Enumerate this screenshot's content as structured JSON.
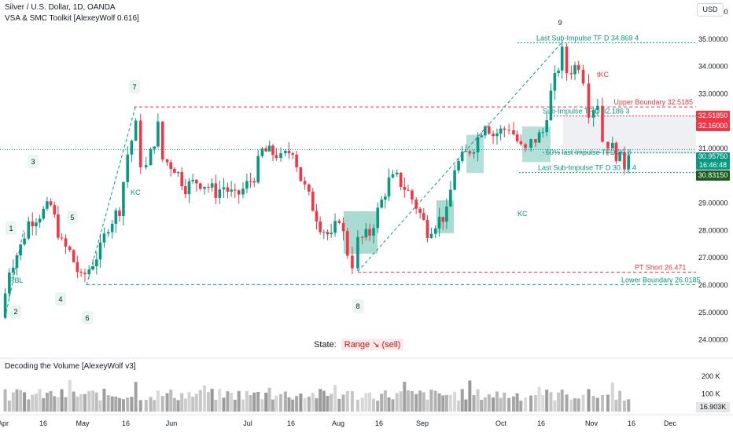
{
  "header": {
    "title": "Silver / U.S. Dollar, 1D, OANDA",
    "indicator": "VSA & SMC Toolkit [AlexeyWolf 0.616]"
  },
  "currency_button": "USD",
  "state": {
    "label": "State:",
    "value": "Range ↘ (sell)"
  },
  "volume_pane": {
    "title": "Decoding the Volume [AlexeyWolf v3]",
    "current": "16.903K"
  },
  "price_tags": {
    "upper": {
      "value": "32.51850",
      "color": "#f23645"
    },
    "red2": {
      "value": "32.16000",
      "color": "#f23645"
    },
    "last": {
      "value": "30.95750",
      "countdown": "16:46:48",
      "color": "#089981"
    },
    "low": {
      "value": "30.83150",
      "color": "#089981"
    }
  },
  "chart_data": [
    {
      "type": "candlestick",
      "title": "Silver / U.S. Dollar, 1D, OANDA",
      "yaxis": {
        "min": 23.5,
        "max": 36.2,
        "ticks": [
          "24.00000",
          "25.00000",
          "26.00000",
          "27.00000",
          "28.00000",
          "29.00000",
          "30.00000",
          "31.00000",
          "32.00000",
          "33.00000",
          "34.00000",
          "35.00000",
          "36.00000"
        ]
      },
      "xaxis": {
        "ticks": [
          "Apr",
          "16",
          "May",
          "16",
          "Jun",
          "Jul",
          "16",
          "Aug",
          "16",
          "Sep",
          "Oct",
          "16",
          "Nov",
          "16",
          "Dec"
        ]
      },
      "colors": {
        "up": "#089981",
        "down": "#f23645"
      },
      "close_path": [
        [
          "Apr 1",
          24.8
        ],
        [
          "Apr 4",
          26.6
        ],
        [
          "Apr 8",
          27.4
        ],
        [
          "Apr 11",
          28.3
        ],
        [
          "Apr 15",
          28.6
        ],
        [
          "Apr 19",
          28.9
        ],
        [
          "Apr 23",
          27.5
        ],
        [
          "Apr 26",
          27.2
        ],
        [
          "Apr 30",
          26.2
        ],
        [
          "May 3",
          26.6
        ],
        [
          "May 7",
          27.3
        ],
        [
          "May 10",
          28.2
        ],
        [
          "May 14",
          28.8
        ],
        [
          "May 17",
          30.8
        ],
        [
          "May 20",
          31.8
        ],
        [
          "May 22",
          30.5
        ],
        [
          "May 24",
          30.3
        ],
        [
          "May 28",
          31.8
        ],
        [
          "May 30",
          30.6
        ],
        [
          "Jun 3",
          30.3
        ],
        [
          "Jun 7",
          29.6
        ],
        [
          "Jun 11",
          29.8
        ],
        [
          "Jun 14",
          29.7
        ],
        [
          "Jun 18",
          29.4
        ],
        [
          "Jun 21",
          29.6
        ],
        [
          "Jun 25",
          29.2
        ],
        [
          "Jun 28",
          29.5
        ],
        [
          "Jul 2",
          30.0
        ],
        [
          "Jul 5",
          30.9
        ],
        [
          "Jul 10",
          30.8
        ],
        [
          "Jul 12",
          30.6
        ],
        [
          "Jul 16",
          31.0
        ],
        [
          "Jul 19",
          29.9
        ],
        [
          "Jul 22",
          29.2
        ],
        [
          "Jul 26",
          28.2
        ],
        [
          "Jul 30",
          27.7
        ],
        [
          "Aug 2",
          28.5
        ],
        [
          "Aug 5",
          27.2
        ],
        [
          "Aug 7",
          26.8
        ],
        [
          "Aug 9",
          27.6
        ],
        [
          "Aug 13",
          27.9
        ],
        [
          "Aug 16",
          28.7
        ],
        [
          "Aug 20",
          29.8
        ],
        [
          "Aug 23",
          29.9
        ],
        [
          "Aug 27",
          29.4
        ],
        [
          "Aug 30",
          28.9
        ],
        [
          "Sep 3",
          28.0
        ],
        [
          "Sep 6",
          28.3
        ],
        [
          "Sep 10",
          28.6
        ],
        [
          "Sep 13",
          30.3
        ],
        [
          "Sep 17",
          30.8
        ],
        [
          "Sep 20",
          31.1
        ],
        [
          "Sep 24",
          32.0
        ],
        [
          "Sep 27",
          31.5
        ],
        [
          "Oct 1",
          31.7
        ],
        [
          "Oct 3",
          31.8
        ],
        [
          "Oct 7",
          31.0
        ],
        [
          "Oct 9",
          30.9
        ],
        [
          "Oct 11",
          31.2
        ],
        [
          "Oct 15",
          31.6
        ],
        [
          "Oct 18",
          33.0
        ],
        [
          "Oct 22",
          34.5
        ],
        [
          "Oct 24",
          33.8
        ],
        [
          "Oct 28",
          34.1
        ],
        [
          "Oct 30",
          33.6
        ],
        [
          "Nov 1",
          32.4
        ],
        [
          "Nov 4",
          32.7
        ],
        [
          "Nov 6",
          31.3
        ],
        [
          "Nov 8",
          31.2
        ],
        [
          "Nov 12",
          30.6
        ],
        [
          "Nov 14",
          30.4
        ],
        [
          "Nov 15",
          30.96
        ]
      ],
      "annotations": [
        {
          "text": "Upper Boundary 32.5185",
          "y": 32.5185,
          "color": "#f23645"
        },
        {
          "text": "Sub-Impulse TF D 32.186 3",
          "y": 32.186,
          "color": "#089981"
        },
        {
          "text": "Last Sub-Impulse TF D 34.869 4",
          "y": 34.869,
          "color": "#089981"
        },
        {
          "text": "50% last Impulse TFD 30.8",
          "y": 30.85,
          "color": "#089981"
        },
        {
          "text": "Last Sub-Impulse TF D 30.12 4",
          "y": 30.12,
          "color": "#089981"
        },
        {
          "text": "PT Short 26.471",
          "y": 26.471,
          "color": "#f23645"
        },
        {
          "text": "Lower Boundary 26.0185",
          "y": 26.0185,
          "color": "#089981"
        },
        {
          "text": "tKC",
          "color": "#f23645"
        },
        {
          "text": "KC",
          "color": "#089981"
        },
        {
          "text": "KC",
          "color": "#089981"
        },
        {
          "text": "RBL",
          "color": "#089981"
        }
      ],
      "wave_labels": [
        "1",
        "2",
        "3",
        "4",
        "5",
        "6",
        "7",
        "8",
        "9"
      ],
      "volume": {
        "ticks": [
          "200 K",
          "100 K"
        ],
        "max": 240
      }
    }
  ]
}
